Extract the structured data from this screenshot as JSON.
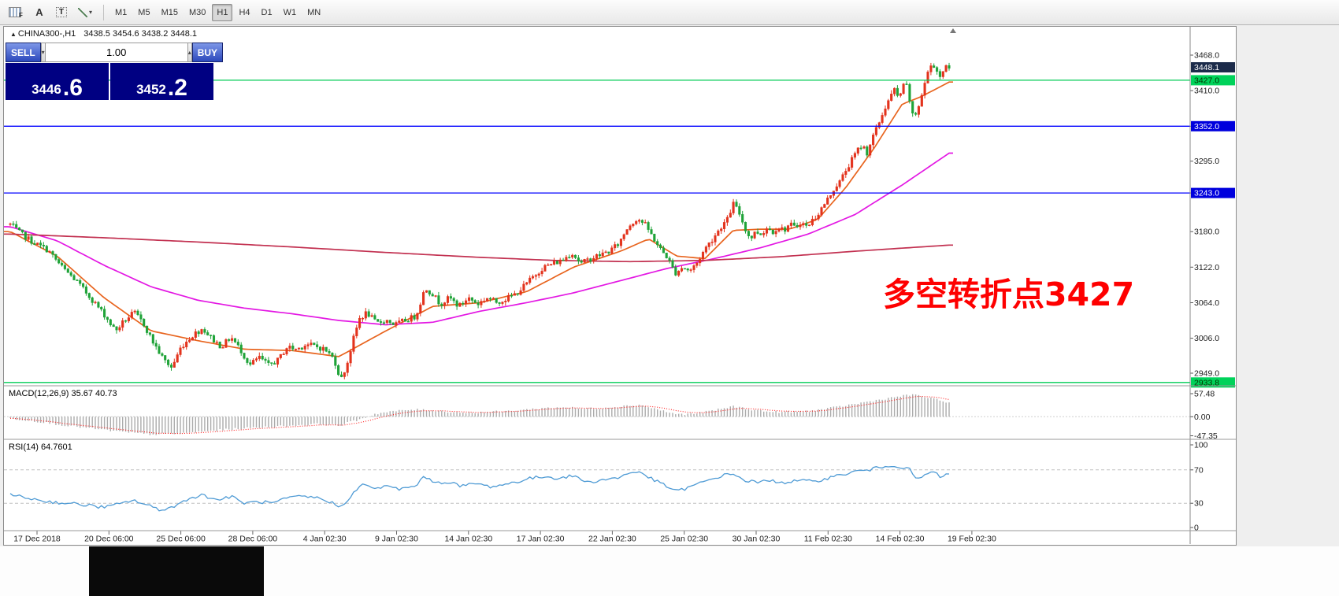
{
  "toolbar": {
    "tools": {
      "f_label": "F",
      "a_label": "A",
      "t_label": "T"
    },
    "timeframes": [
      "M1",
      "M5",
      "M15",
      "M30",
      "H1",
      "H4",
      "D1",
      "W1",
      "MN"
    ],
    "active_timeframe": "H1"
  },
  "chart_header": {
    "symbol": "CHINA300-,H1",
    "ohlc": "3438.5 3454.6 3438.2 3448.1"
  },
  "trade_panel": {
    "sell_label": "SELL",
    "buy_label": "BUY",
    "volume": "1.00",
    "sell_price": "3446",
    "sell_price_frac": ".6",
    "buy_price": "3452",
    "buy_price_frac": ".2"
  },
  "annotation": {
    "text": "多空转折点3427",
    "color": "#fe0000"
  },
  "price_axis": {
    "ticks": [
      {
        "label": "3468.0",
        "price": 3468
      },
      {
        "label": "3410.0",
        "price": 3410
      },
      {
        "label": "3352.0",
        "price": 3352
      },
      {
        "label": "3295.0",
        "price": 3295
      },
      {
        "label": "3243.0",
        "price": 3243
      },
      {
        "label": "3180.0",
        "price": 3180
      },
      {
        "label": "3122.0",
        "price": 3122
      },
      {
        "label": "3064.0",
        "price": 3064
      },
      {
        "label": "3006.0",
        "price": 3006
      },
      {
        "label": "2949.0",
        "price": 2949
      }
    ],
    "highlights": [
      {
        "label": "3448.1",
        "price": 3448.1,
        "bg": "#1c2b4a",
        "fg": "#ffffff"
      },
      {
        "label": "3427.0",
        "price": 3427,
        "bg": "#00d25a",
        "fg": "#003300"
      },
      {
        "label": "3352.0",
        "price": 3352,
        "bg": "#0000dd",
        "fg": "#ffffff"
      },
      {
        "label": "3243.0",
        "price": 3243,
        "bg": "#0000dd",
        "fg": "#ffffff"
      },
      {
        "label": "2933.8",
        "price": 2933.8,
        "bg": "#00d25a",
        "fg": "#003300"
      }
    ]
  },
  "macd_panel": {
    "label": "MACD(12,26,9) 35.67 40.73",
    "axis": [
      {
        "label": "57.48",
        "v": 57.48
      },
      {
        "label": "0.00",
        "v": 0
      },
      {
        "label": "-47.35",
        "v": -47.35
      }
    ]
  },
  "rsi_panel": {
    "label": "RSI(14) 64.7601",
    "axis": [
      {
        "label": "100",
        "v": 100
      },
      {
        "label": "70",
        "v": 70
      },
      {
        "label": "30",
        "v": 30
      },
      {
        "label": "0",
        "v": 0
      }
    ],
    "levels": [
      70,
      30
    ]
  },
  "time_axis": [
    "17 Dec 2018",
    "20 Dec 06:00",
    "25 Dec 06:00",
    "28 Dec 06:00",
    "4 Jan 02:30",
    "9 Jan 02:30",
    "14 Jan 02:30",
    "17 Jan 02:30",
    "22 Jan 02:30",
    "25 Jan 02:30",
    "30 Jan 02:30",
    "11 Feb 02:30",
    "14 Feb 02:30",
    "19 Feb 02:30"
  ],
  "chart_data": {
    "type": "candlestick",
    "symbol": "CHINA300",
    "timeframe": "H1",
    "candles": 310,
    "price_range": [
      2933.8,
      3468.0
    ],
    "current_price": 3448.1,
    "turning_point": 3427,
    "up_color": "#e3331d",
    "down_color": "#1fa338",
    "macd_hist_color": "#ababab",
    "macd_signal_color": "#ff2222",
    "rsi_color": "#4f9bd5",
    "horizontal_lines": [
      {
        "price": 3427,
        "color": "#00cc55"
      },
      {
        "price": 3352,
        "color": "#0000ff"
      },
      {
        "price": 3243,
        "color": "#0000ff"
      },
      {
        "price": 2933.8,
        "color": "#00cc55"
      }
    ],
    "price_path": [
      [
        0,
        3192
      ],
      [
        0.01,
        3178
      ],
      [
        0.025,
        3162
      ],
      [
        0.04,
        3150
      ],
      [
        0.055,
        3122
      ],
      [
        0.07,
        3100
      ],
      [
        0.085,
        3073
      ],
      [
        0.1,
        3045
      ],
      [
        0.112,
        3018
      ],
      [
        0.122,
        3035
      ],
      [
        0.132,
        3048
      ],
      [
        0.142,
        3030
      ],
      [
        0.152,
        3000
      ],
      [
        0.163,
        2972
      ],
      [
        0.172,
        2958
      ],
      [
        0.182,
        2992
      ],
      [
        0.195,
        3012
      ],
      [
        0.205,
        3022
      ],
      [
        0.215,
        3005
      ],
      [
        0.225,
        2992
      ],
      [
        0.235,
        3008
      ],
      [
        0.245,
        2988
      ],
      [
        0.255,
        2962
      ],
      [
        0.265,
        2975
      ],
      [
        0.275,
        2962
      ],
      [
        0.285,
        2970
      ],
      [
        0.295,
        2992
      ],
      [
        0.305,
        2988
      ],
      [
        0.315,
        2996
      ],
      [
        0.325,
        2993
      ],
      [
        0.335,
        2988
      ],
      [
        0.345,
        2972
      ],
      [
        0.352,
        2938
      ],
      [
        0.358,
        2960
      ],
      [
        0.365,
        3002
      ],
      [
        0.372,
        3038
      ],
      [
        0.38,
        3048
      ],
      [
        0.39,
        3030
      ],
      [
        0.4,
        3036
      ],
      [
        0.41,
        3028
      ],
      [
        0.42,
        3035
      ],
      [
        0.432,
        3042
      ],
      [
        0.442,
        3088
      ],
      [
        0.45,
        3078
      ],
      [
        0.458,
        3062
      ],
      [
        0.468,
        3072
      ],
      [
        0.478,
        3058
      ],
      [
        0.488,
        3072
      ],
      [
        0.498,
        3062
      ],
      [
        0.508,
        3072
      ],
      [
        0.518,
        3065
      ],
      [
        0.528,
        3070
      ],
      [
        0.538,
        3078
      ],
      [
        0.548,
        3092
      ],
      [
        0.558,
        3108
      ],
      [
        0.568,
        3122
      ],
      [
        0.578,
        3128
      ],
      [
        0.588,
        3133
      ],
      [
        0.598,
        3146
      ],
      [
        0.608,
        3128
      ],
      [
        0.618,
        3136
      ],
      [
        0.628,
        3142
      ],
      [
        0.638,
        3148
      ],
      [
        0.648,
        3160
      ],
      [
        0.658,
        3188
      ],
      [
        0.668,
        3202
      ],
      [
        0.676,
        3192
      ],
      [
        0.684,
        3172
      ],
      [
        0.692,
        3152
      ],
      [
        0.7,
        3138
      ],
      [
        0.708,
        3112
      ],
      [
        0.716,
        3122
      ],
      [
        0.724,
        3116
      ],
      [
        0.732,
        3130
      ],
      [
        0.74,
        3152
      ],
      [
        0.748,
        3168
      ],
      [
        0.756,
        3186
      ],
      [
        0.764,
        3200
      ],
      [
        0.77,
        3226
      ],
      [
        0.776,
        3212
      ],
      [
        0.782,
        3188
      ],
      [
        0.788,
        3168
      ],
      [
        0.794,
        3180
      ],
      [
        0.8,
        3176
      ],
      [
        0.806,
        3186
      ],
      [
        0.812,
        3180
      ],
      [
        0.818,
        3188
      ],
      [
        0.824,
        3182
      ],
      [
        0.83,
        3192
      ],
      [
        0.836,
        3186
      ],
      [
        0.842,
        3196
      ],
      [
        0.848,
        3188
      ],
      [
        0.854,
        3198
      ],
      [
        0.86,
        3208
      ],
      [
        0.866,
        3222
      ],
      [
        0.872,
        3236
      ],
      [
        0.878,
        3252
      ],
      [
        0.884,
        3262
      ],
      [
        0.89,
        3280
      ],
      [
        0.896,
        3296
      ],
      [
        0.902,
        3312
      ],
      [
        0.908,
        3322
      ],
      [
        0.912,
        3306
      ],
      [
        0.918,
        3332
      ],
      [
        0.924,
        3352
      ],
      [
        0.93,
        3376
      ],
      [
        0.936,
        3396
      ],
      [
        0.942,
        3412
      ],
      [
        0.946,
        3396
      ],
      [
        0.95,
        3414
      ],
      [
        0.954,
        3422
      ],
      [
        0.958,
        3394
      ],
      [
        0.962,
        3362
      ],
      [
        0.966,
        3378
      ],
      [
        0.97,
        3398
      ],
      [
        0.974,
        3422
      ],
      [
        0.978,
        3442
      ],
      [
        0.982,
        3456
      ],
      [
        0.986,
        3446
      ],
      [
        0.99,
        3432
      ],
      [
        0.994,
        3446
      ],
      [
        1,
        3448
      ]
    ],
    "moving_averages": [
      {
        "name": "ma-fast-line",
        "color": "#e8641e",
        "path": [
          [
            0,
            3180
          ],
          [
            0.05,
            3140
          ],
          [
            0.1,
            3072
          ],
          [
            0.15,
            3018
          ],
          [
            0.2,
            3002
          ],
          [
            0.25,
            2988
          ],
          [
            0.3,
            2986
          ],
          [
            0.35,
            2976
          ],
          [
            0.4,
            3018
          ],
          [
            0.45,
            3058
          ],
          [
            0.5,
            3064
          ],
          [
            0.55,
            3082
          ],
          [
            0.6,
            3122
          ],
          [
            0.65,
            3148
          ],
          [
            0.68,
            3168
          ],
          [
            0.71,
            3140
          ],
          [
            0.74,
            3136
          ],
          [
            0.77,
            3182
          ],
          [
            0.8,
            3184
          ],
          [
            0.83,
            3184
          ],
          [
            0.86,
            3200
          ],
          [
            0.89,
            3252
          ],
          [
            0.92,
            3316
          ],
          [
            0.95,
            3388
          ],
          [
            0.97,
            3400
          ],
          [
            1,
            3424
          ]
        ]
      },
      {
        "name": "ma-mid-line",
        "color": "#e318e3",
        "path": [
          [
            0,
            3188
          ],
          [
            0.05,
            3165
          ],
          [
            0.1,
            3125
          ],
          [
            0.15,
            3090
          ],
          [
            0.2,
            3068
          ],
          [
            0.25,
            3055
          ],
          [
            0.3,
            3046
          ],
          [
            0.35,
            3035
          ],
          [
            0.4,
            3028
          ],
          [
            0.45,
            3032
          ],
          [
            0.5,
            3050
          ],
          [
            0.55,
            3064
          ],
          [
            0.6,
            3080
          ],
          [
            0.65,
            3100
          ],
          [
            0.7,
            3120
          ],
          [
            0.75,
            3136
          ],
          [
            0.8,
            3154
          ],
          [
            0.85,
            3176
          ],
          [
            0.9,
            3208
          ],
          [
            0.95,
            3256
          ],
          [
            1,
            3308
          ]
        ]
      },
      {
        "name": "ma-slow-line",
        "color": "#c23050",
        "path": [
          [
            0,
            3176
          ],
          [
            0.1,
            3170
          ],
          [
            0.2,
            3163
          ],
          [
            0.3,
            3155
          ],
          [
            0.4,
            3146
          ],
          [
            0.5,
            3138
          ],
          [
            0.58,
            3133
          ],
          [
            0.66,
            3131
          ],
          [
            0.74,
            3133
          ],
          [
            0.82,
            3139
          ],
          [
            0.9,
            3148
          ],
          [
            1,
            3158
          ]
        ]
      }
    ],
    "macd": {
      "path": [
        [
          0,
          -4
        ],
        [
          0.03,
          -12
        ],
        [
          0.06,
          -22
        ],
        [
          0.09,
          -30
        ],
        [
          0.12,
          -38
        ],
        [
          0.15,
          -44
        ],
        [
          0.18,
          -42
        ],
        [
          0.21,
          -36
        ],
        [
          0.24,
          -30
        ],
        [
          0.27,
          -26
        ],
        [
          0.3,
          -22
        ],
        [
          0.33,
          -18
        ],
        [
          0.35,
          -22
        ],
        [
          0.37,
          -8
        ],
        [
          0.39,
          8
        ],
        [
          0.41,
          14
        ],
        [
          0.43,
          18
        ],
        [
          0.45,
          16
        ],
        [
          0.47,
          12
        ],
        [
          0.49,
          10
        ],
        [
          0.51,
          12
        ],
        [
          0.53,
          14
        ],
        [
          0.55,
          18
        ],
        [
          0.57,
          22
        ],
        [
          0.59,
          24
        ],
        [
          0.61,
          20
        ],
        [
          0.63,
          22
        ],
        [
          0.65,
          26
        ],
        [
          0.67,
          30
        ],
        [
          0.69,
          18
        ],
        [
          0.71,
          6
        ],
        [
          0.73,
          8
        ],
        [
          0.75,
          16
        ],
        [
          0.77,
          26
        ],
        [
          0.79,
          18
        ],
        [
          0.81,
          12
        ],
        [
          0.83,
          12
        ],
        [
          0.85,
          14
        ],
        [
          0.87,
          20
        ],
        [
          0.89,
          28
        ],
        [
          0.91,
          36
        ],
        [
          0.93,
          44
        ],
        [
          0.95,
          52
        ],
        [
          0.965,
          55
        ],
        [
          0.98,
          46
        ],
        [
          1,
          36
        ]
      ]
    },
    "rsi": {
      "path": [
        [
          0,
          40
        ],
        [
          0.02,
          36
        ],
        [
          0.04,
          32
        ],
        [
          0.06,
          30
        ],
        [
          0.08,
          28
        ],
        [
          0.1,
          25
        ],
        [
          0.12,
          30
        ],
        [
          0.13,
          34
        ],
        [
          0.145,
          28
        ],
        [
          0.16,
          22
        ],
        [
          0.175,
          26
        ],
        [
          0.19,
          36
        ],
        [
          0.205,
          40
        ],
        [
          0.22,
          34
        ],
        [
          0.235,
          38
        ],
        [
          0.25,
          30
        ],
        [
          0.265,
          32
        ],
        [
          0.28,
          30
        ],
        [
          0.295,
          36
        ],
        [
          0.31,
          38
        ],
        [
          0.325,
          37
        ],
        [
          0.34,
          32
        ],
        [
          0.352,
          25
        ],
        [
          0.365,
          42
        ],
        [
          0.375,
          52
        ],
        [
          0.39,
          48
        ],
        [
          0.4,
          50
        ],
        [
          0.415,
          47
        ],
        [
          0.43,
          50
        ],
        [
          0.442,
          62
        ],
        [
          0.455,
          54
        ],
        [
          0.468,
          56
        ],
        [
          0.48,
          50
        ],
        [
          0.495,
          54
        ],
        [
          0.51,
          50
        ],
        [
          0.525,
          52
        ],
        [
          0.54,
          56
        ],
        [
          0.555,
          60
        ],
        [
          0.57,
          62
        ],
        [
          0.585,
          60
        ],
        [
          0.6,
          63
        ],
        [
          0.615,
          55
        ],
        [
          0.63,
          58
        ],
        [
          0.645,
          60
        ],
        [
          0.66,
          66
        ],
        [
          0.67,
          68
        ],
        [
          0.685,
          58
        ],
        [
          0.7,
          50
        ],
        [
          0.71,
          44
        ],
        [
          0.725,
          50
        ],
        [
          0.74,
          56
        ],
        [
          0.755,
          62
        ],
        [
          0.77,
          66
        ],
        [
          0.78,
          58
        ],
        [
          0.795,
          55
        ],
        [
          0.81,
          57
        ],
        [
          0.825,
          55
        ],
        [
          0.84,
          57
        ],
        [
          0.855,
          56
        ],
        [
          0.87,
          60
        ],
        [
          0.885,
          64
        ],
        [
          0.9,
          68
        ],
        [
          0.915,
          70
        ],
        [
          0.93,
          74
        ],
        [
          0.94,
          76
        ],
        [
          0.95,
          73
        ],
        [
          0.958,
          70
        ],
        [
          0.966,
          58
        ],
        [
          0.975,
          64
        ],
        [
          0.982,
          68
        ],
        [
          0.99,
          62
        ],
        [
          1,
          64.8
        ]
      ]
    }
  }
}
